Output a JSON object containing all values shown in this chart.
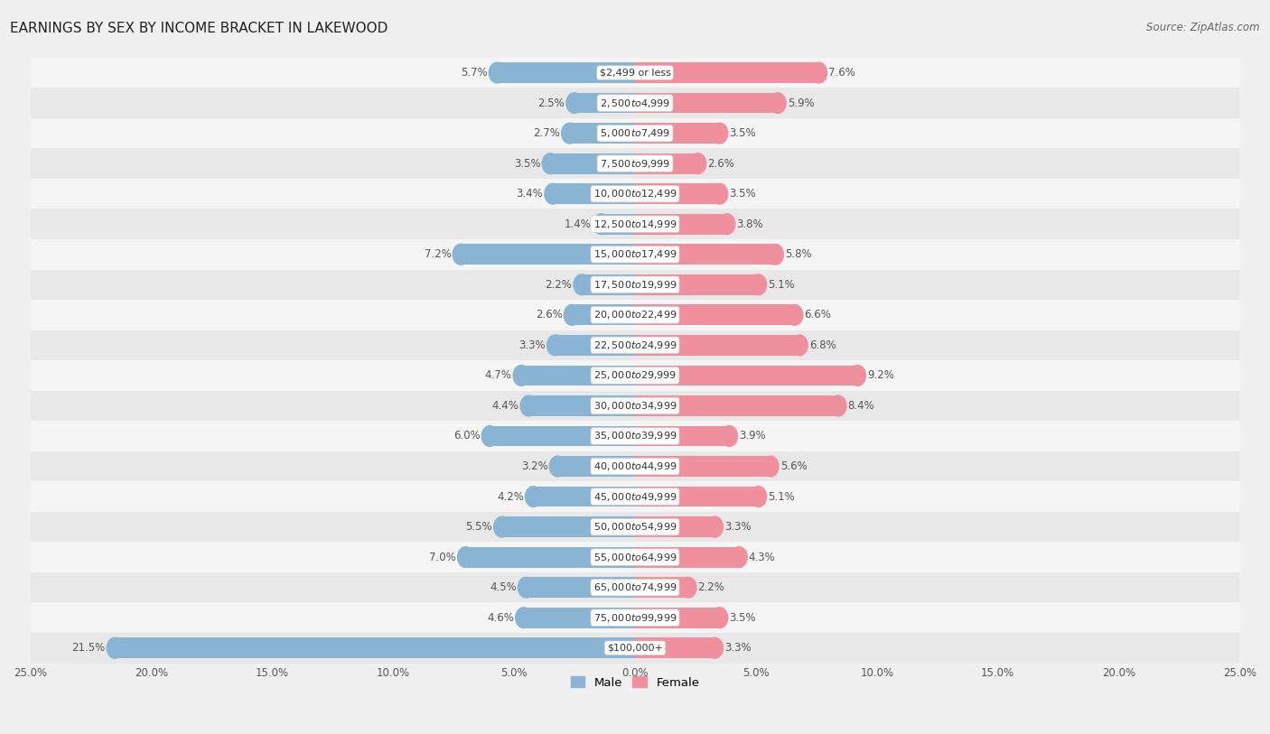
{
  "title": "EARNINGS BY SEX BY INCOME BRACKET IN LAKEWOOD",
  "source": "Source: ZipAtlas.com",
  "categories": [
    "$2,499 or less",
    "$2,500 to $4,999",
    "$5,000 to $7,499",
    "$7,500 to $9,999",
    "$10,000 to $12,499",
    "$12,500 to $14,999",
    "$15,000 to $17,499",
    "$17,500 to $19,999",
    "$20,000 to $22,499",
    "$22,500 to $24,999",
    "$25,000 to $29,999",
    "$30,000 to $34,999",
    "$35,000 to $39,999",
    "$40,000 to $44,999",
    "$45,000 to $49,999",
    "$50,000 to $54,999",
    "$55,000 to $64,999",
    "$65,000 to $74,999",
    "$75,000 to $99,999",
    "$100,000+"
  ],
  "male_values": [
    5.7,
    2.5,
    2.7,
    3.5,
    3.4,
    1.4,
    7.2,
    2.2,
    2.6,
    3.3,
    4.7,
    4.4,
    6.0,
    3.2,
    4.2,
    5.5,
    7.0,
    4.5,
    4.6,
    21.5
  ],
  "female_values": [
    7.6,
    5.9,
    3.5,
    2.6,
    3.5,
    3.8,
    5.8,
    5.1,
    6.6,
    6.8,
    9.2,
    8.4,
    3.9,
    5.6,
    5.1,
    3.3,
    4.3,
    2.2,
    3.5,
    3.3
  ],
  "male_color": "#8ab4d4",
  "female_color": "#f0909f",
  "male_label": "Male",
  "female_label": "Female",
  "axis_max": 25.0,
  "row_color_even": "#f5f5f5",
  "row_color_odd": "#e8e8e8",
  "background_color": "#f0f0f0",
  "label_color": "#555555",
  "category_bg": "#ffffff",
  "title_fontsize": 11,
  "source_fontsize": 8.5,
  "label_fontsize": 8.5,
  "tick_fontsize": 8.5,
  "category_fontsize": 8.0
}
